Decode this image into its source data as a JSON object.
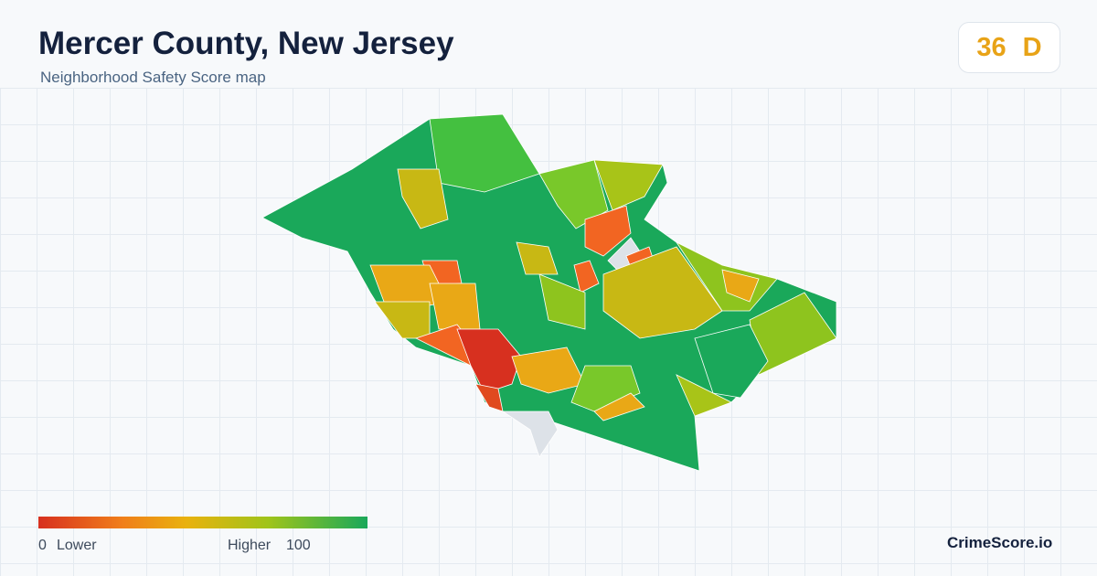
{
  "header": {
    "title": "Mercer County, New Jersey",
    "subtitle": "Neighborhood Safety Score map"
  },
  "score": {
    "value": "36",
    "grade": "D"
  },
  "legend": {
    "min": "0",
    "min_label": "Lower",
    "max_label": "Higher",
    "max": "100"
  },
  "brand": "CrimeScore.io"
}
